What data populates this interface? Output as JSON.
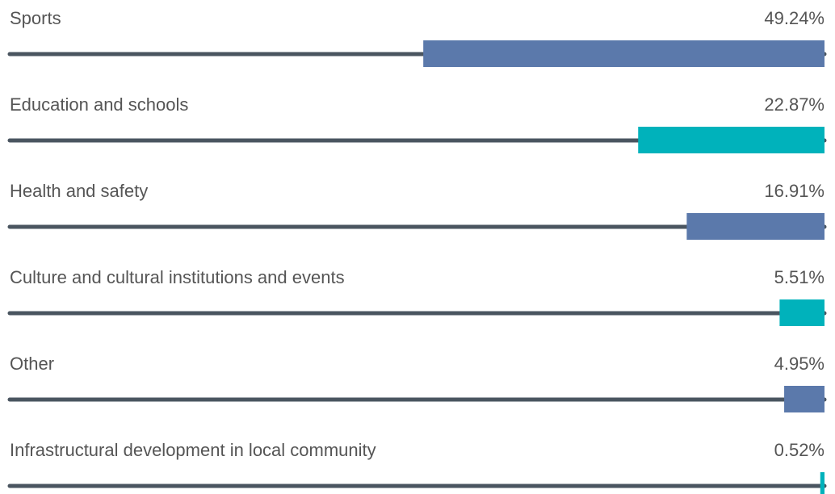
{
  "chart_data": {
    "type": "bar",
    "orientation": "horizontal",
    "direction": "right-to-left",
    "categories": [
      "Sports",
      "Education and schools",
      "Health and safety",
      "Culture and cultural institutions and events",
      "Other",
      "Infrastructural development in local community"
    ],
    "values": [
      49.24,
      22.87,
      16.91,
      5.51,
      4.95,
      0.52
    ],
    "value_labels": [
      "49.24%",
      "22.87%",
      "16.91%",
      "5.51%",
      "4.95%",
      "0.52%"
    ],
    "colors": [
      "#5b79ab",
      "#00b2bb",
      "#5b79ab",
      "#00b2bb",
      "#5b79ab",
      "#00b2bb"
    ],
    "xlim": [
      0,
      100
    ]
  }
}
